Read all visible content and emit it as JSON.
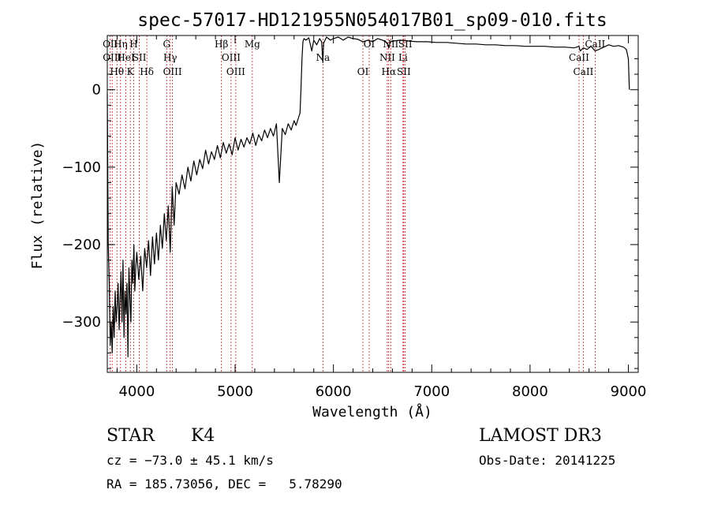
{
  "chart_data": {
    "type": "line",
    "title": "spec-57017-HD121955N054017B01_sp09-010.fits",
    "xlabel": "Wavelength (Å)",
    "ylabel": "Flux (relative)",
    "xlim": [
      3700,
      9100
    ],
    "ylim": [
      -365,
      70
    ],
    "x_ticks": [
      4000,
      5000,
      6000,
      7000,
      8000,
      9000
    ],
    "y_ticks": [
      0,
      -100,
      -200,
      -300
    ],
    "grid": false,
    "series": [
      {
        "name": "spectrum",
        "x": [
          3700,
          3710,
          3720,
          3730,
          3740,
          3750,
          3760,
          3770,
          3780,
          3790,
          3800,
          3810,
          3820,
          3830,
          3840,
          3850,
          3860,
          3870,
          3880,
          3890,
          3900,
          3910,
          3920,
          3930,
          3940,
          3950,
          3960,
          3970,
          3980,
          3990,
          4000,
          4020,
          4040,
          4060,
          4080,
          4100,
          4120,
          4140,
          4160,
          4180,
          4200,
          4220,
          4240,
          4260,
          4280,
          4300,
          4320,
          4340,
          4360,
          4380,
          4400,
          4430,
          4460,
          4490,
          4520,
          4550,
          4580,
          4610,
          4640,
          4670,
          4700,
          4730,
          4760,
          4790,
          4820,
          4850,
          4880,
          4910,
          4940,
          4970,
          5000,
          5030,
          5060,
          5090,
          5120,
          5150,
          5180,
          5210,
          5240,
          5270,
          5300,
          5330,
          5360,
          5390,
          5420,
          5450,
          5480,
          5510,
          5540,
          5570,
          5600,
          5620,
          5640,
          5660,
          5670,
          5680,
          5690,
          5700,
          5720,
          5750,
          5780,
          5800,
          5830,
          5860,
          5880,
          5893,
          5900,
          5930,
          5970,
          6000,
          6050,
          6100,
          6150,
          6200,
          6250,
          6300,
          6350,
          6400,
          6450,
          6500,
          6550,
          6563,
          6580,
          6620,
          6680,
          6750,
          6850,
          6950,
          7050,
          7150,
          7250,
          7350,
          7450,
          7550,
          7650,
          7750,
          7850,
          7950,
          8050,
          8150,
          8250,
          8350,
          8450,
          8498,
          8510,
          8542,
          8580,
          8620,
          8662,
          8700,
          8750,
          8800,
          8850,
          8900,
          8950,
          8980,
          9000,
          9010
        ],
        "values": [
          -5,
          -200,
          -250,
          -330,
          -300,
          -340,
          -280,
          -320,
          -260,
          -300,
          -280,
          -250,
          -310,
          -270,
          -235,
          -300,
          -220,
          -320,
          -260,
          -290,
          -250,
          -345,
          -230,
          -270,
          -300,
          -220,
          -250,
          -200,
          -260,
          -230,
          -210,
          -245,
          -215,
          -260,
          -205,
          -230,
          -195,
          -240,
          -190,
          -225,
          -185,
          -220,
          -175,
          -205,
          -160,
          -195,
          -150,
          -210,
          -125,
          -175,
          -120,
          -135,
          -110,
          -128,
          -100,
          -118,
          -92,
          -110,
          -90,
          -102,
          -78,
          -96,
          -80,
          -90,
          -72,
          -88,
          -68,
          -82,
          -70,
          -84,
          -62,
          -78,
          -64,
          -74,
          -62,
          -70,
          -56,
          -72,
          -58,
          -66,
          -52,
          -62,
          -50,
          -60,
          -44,
          -120,
          -50,
          -58,
          -44,
          -52,
          -40,
          -46,
          -38,
          -30,
          0,
          40,
          62,
          66,
          64,
          67,
          50,
          64,
          58,
          66,
          62,
          35,
          60,
          68,
          64,
          66,
          68,
          64,
          68,
          66,
          65,
          62,
          64,
          62,
          66,
          64,
          60,
          54,
          62,
          63,
          64,
          63,
          62,
          62,
          61,
          61,
          60,
          59,
          59,
          58,
          58,
          57,
          57,
          56,
          56,
          56,
          55,
          55,
          54,
          56,
          50,
          54,
          52,
          56,
          50,
          52,
          55,
          58,
          56,
          57,
          55,
          52,
          40,
          0
        ]
      }
    ],
    "lines": [
      {
        "x": 3730,
        "top": "OII"
      },
      {
        "x": 3750,
        "top": "OIII"
      },
      {
        "x": 3798,
        "top": "Hθ"
      },
      {
        "x": 3835,
        "top": "Hη"
      },
      {
        "x": 3889,
        "top": "HeI"
      },
      {
        "x": 3934,
        "top": "K"
      },
      {
        "x": 3969,
        "top": "H"
      },
      {
        "x": 4026,
        "top": "SII"
      },
      {
        "x": 4102,
        "top": "Hδ"
      },
      {
        "x": 4304,
        "top": "G"
      },
      {
        "x": 4340,
        "top": "Hγ"
      },
      {
        "x": 4363,
        "top": "OIII"
      },
      {
        "x": 4861,
        "top": "Hβ"
      },
      {
        "x": 4959,
        "top": "OIII"
      },
      {
        "x": 5007,
        "top": "OIII"
      },
      {
        "x": 5175,
        "top": "Mg"
      },
      {
        "x": 5893,
        "top": "Na"
      },
      {
        "x": 6300,
        "top": "OI"
      },
      {
        "x": 6364,
        "top": "OI"
      },
      {
        "x": 6548,
        "top": "NII"
      },
      {
        "x": 6563,
        "top": "Hα"
      },
      {
        "x": 6583,
        "top": "NII"
      },
      {
        "x": 6708,
        "top": "Li"
      },
      {
        "x": 6716,
        "top": "SII"
      },
      {
        "x": 6731,
        "top": "SII"
      },
      {
        "x": 8498,
        "top": "CaII"
      },
      {
        "x": 8542,
        "top": "CaII"
      },
      {
        "x": 8662,
        "top": "CaII"
      }
    ]
  },
  "info": {
    "class": "STAR",
    "subclass": "K4",
    "survey": "LAMOST DR3",
    "cz": "cz = −73.0 ± 45.1 km/s",
    "obs_date": "Obs-Date: 20141225",
    "radec": "RA = 185.73056, DEC =   5.78290"
  }
}
